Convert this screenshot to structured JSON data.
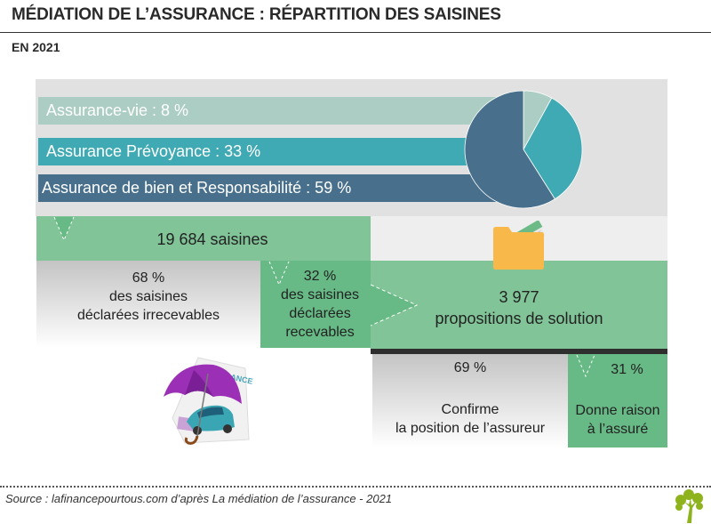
{
  "header": {
    "title": "MÉDIATION DE L’ASSURANCE : RÉPARTITION DES SAISINES",
    "subtitle": "EN 2021"
  },
  "categories": {
    "items": [
      {
        "label": "Assurance-vie : 8 %",
        "name": "Assurance-vie",
        "value": 8,
        "color": "#abcdc3"
      },
      {
        "label": "Assurance Prévoyance : 33 %",
        "name": "Assurance Prévoyance",
        "value": 33,
        "color": "#3fa9b4"
      },
      {
        "label": "Assurance de bien et Responsabilité : 59 %",
        "name": "Assurance de bien et Responsabilité",
        "value": 59,
        "color": "#48708c"
      }
    ]
  },
  "chart_data": {
    "type": "pie",
    "title": "Répartition des saisines par type d'assurance",
    "categories": [
      "Assurance-vie",
      "Assurance Prévoyance",
      "Assurance de bien et Responsabilité"
    ],
    "values": [
      8,
      33,
      59
    ],
    "unit": "%",
    "colors": [
      "#abcdc3",
      "#3fa9b4",
      "#48708c"
    ],
    "start": "top, clockwise"
  },
  "flow": {
    "total": "19 684 saisines",
    "irrecevables": {
      "pct": "68 %",
      "line1": "des saisines",
      "line2": "déclarées irrecevables"
    },
    "recevables": {
      "pct": "32 %",
      "line1": "des saisines",
      "line2": "déclarées",
      "line3": "recevables"
    },
    "solutions": {
      "count": "3 977",
      "label": "propositions de solution"
    },
    "confirme": {
      "pct": "69 %",
      "line1": "Confirme",
      "line2": "la position de l’assureur"
    },
    "raison": {
      "pct": "31 %",
      "line1": "Donne raison",
      "line2": "à l’assuré"
    }
  },
  "colors": {
    "green_light": "#80c497",
    "green_dark": "#67b985",
    "panel_gray": "#e1e1e1",
    "folder": "#f8b94a",
    "logo": "#8fb31d"
  },
  "icons": {
    "folder": "folder-icon",
    "illustration": "umbrella-car-insurance-illustration",
    "logo": "tree-logo-icon"
  },
  "footer": {
    "source": "Source : lafinancepourtous.com d’après La médiation de l’assurance - 2021"
  }
}
